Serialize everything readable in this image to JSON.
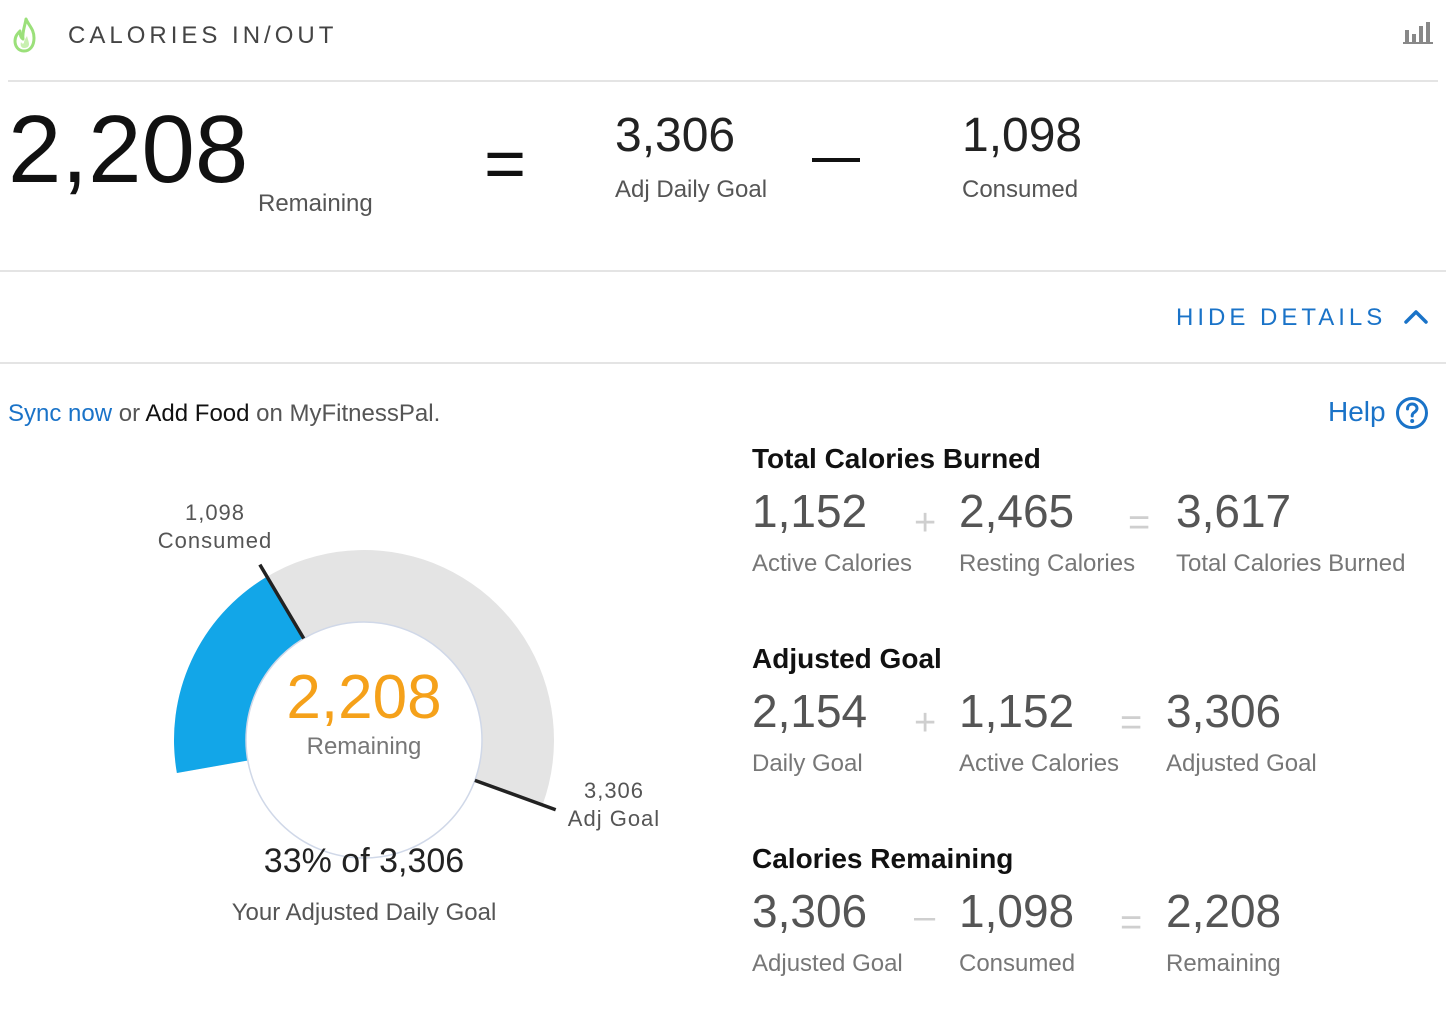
{
  "header": {
    "title": "CALORIES IN/OUT",
    "icons": {
      "left": "flame-icon",
      "right": "bar-chart-icon"
    },
    "colors": {
      "flame": "#9be07a"
    }
  },
  "summary": {
    "remaining_value": "2,208",
    "remaining_label": "Remaining",
    "equals": "=",
    "goal_value": "3,306",
    "goal_label": "Adj Daily Goal",
    "consumed_value": "1,098",
    "consumed_label": "Consumed"
  },
  "toggle": {
    "label": "HIDE DETAILS",
    "icon": "chevron-up-icon",
    "color": "#1a73c8"
  },
  "sync": {
    "sync_now": "Sync now",
    "or": " or ",
    "add_food": "Add Food",
    "suffix": " on MyFitnessPal.",
    "help": "Help",
    "help_icon": "question-circle-icon"
  },
  "gauge": {
    "consumed_value": "1,098",
    "consumed_label": "Consumed",
    "center_value": "2,208",
    "center_label": "Remaining",
    "goal_value": "3,306",
    "goal_label": "Adj Goal",
    "percent_text": "33% of 3,306",
    "caption": "Your Adjusted Daily Goal",
    "fraction_consumed": 0.33,
    "colors": {
      "filled": "#12a6e8",
      "track": "#e4e4e4",
      "center_value": "#f5a11a"
    }
  },
  "breakdown": {
    "burned": {
      "title": "Total Calories Burned",
      "items": [
        {
          "value": "1,152",
          "label": "Active Calories"
        },
        {
          "value": "2,465",
          "label": "Resting Calories"
        },
        {
          "value": "3,617",
          "label": "Total Calories Burned"
        }
      ],
      "ops": [
        "+",
        "="
      ]
    },
    "adjusted": {
      "title": "Adjusted Goal",
      "items": [
        {
          "value": "2,154",
          "label": "Daily Goal"
        },
        {
          "value": "1,152",
          "label": "Active Calories"
        },
        {
          "value": "3,306",
          "label": "Adjusted Goal"
        }
      ],
      "ops": [
        "+",
        "="
      ]
    },
    "remaining": {
      "title": "Calories Remaining",
      "items": [
        {
          "value": "3,306",
          "label": "Adjusted Goal"
        },
        {
          "value": "1,098",
          "label": "Consumed"
        },
        {
          "value": "2,208",
          "label": "Remaining"
        }
      ],
      "ops": [
        "–",
        "="
      ]
    }
  }
}
